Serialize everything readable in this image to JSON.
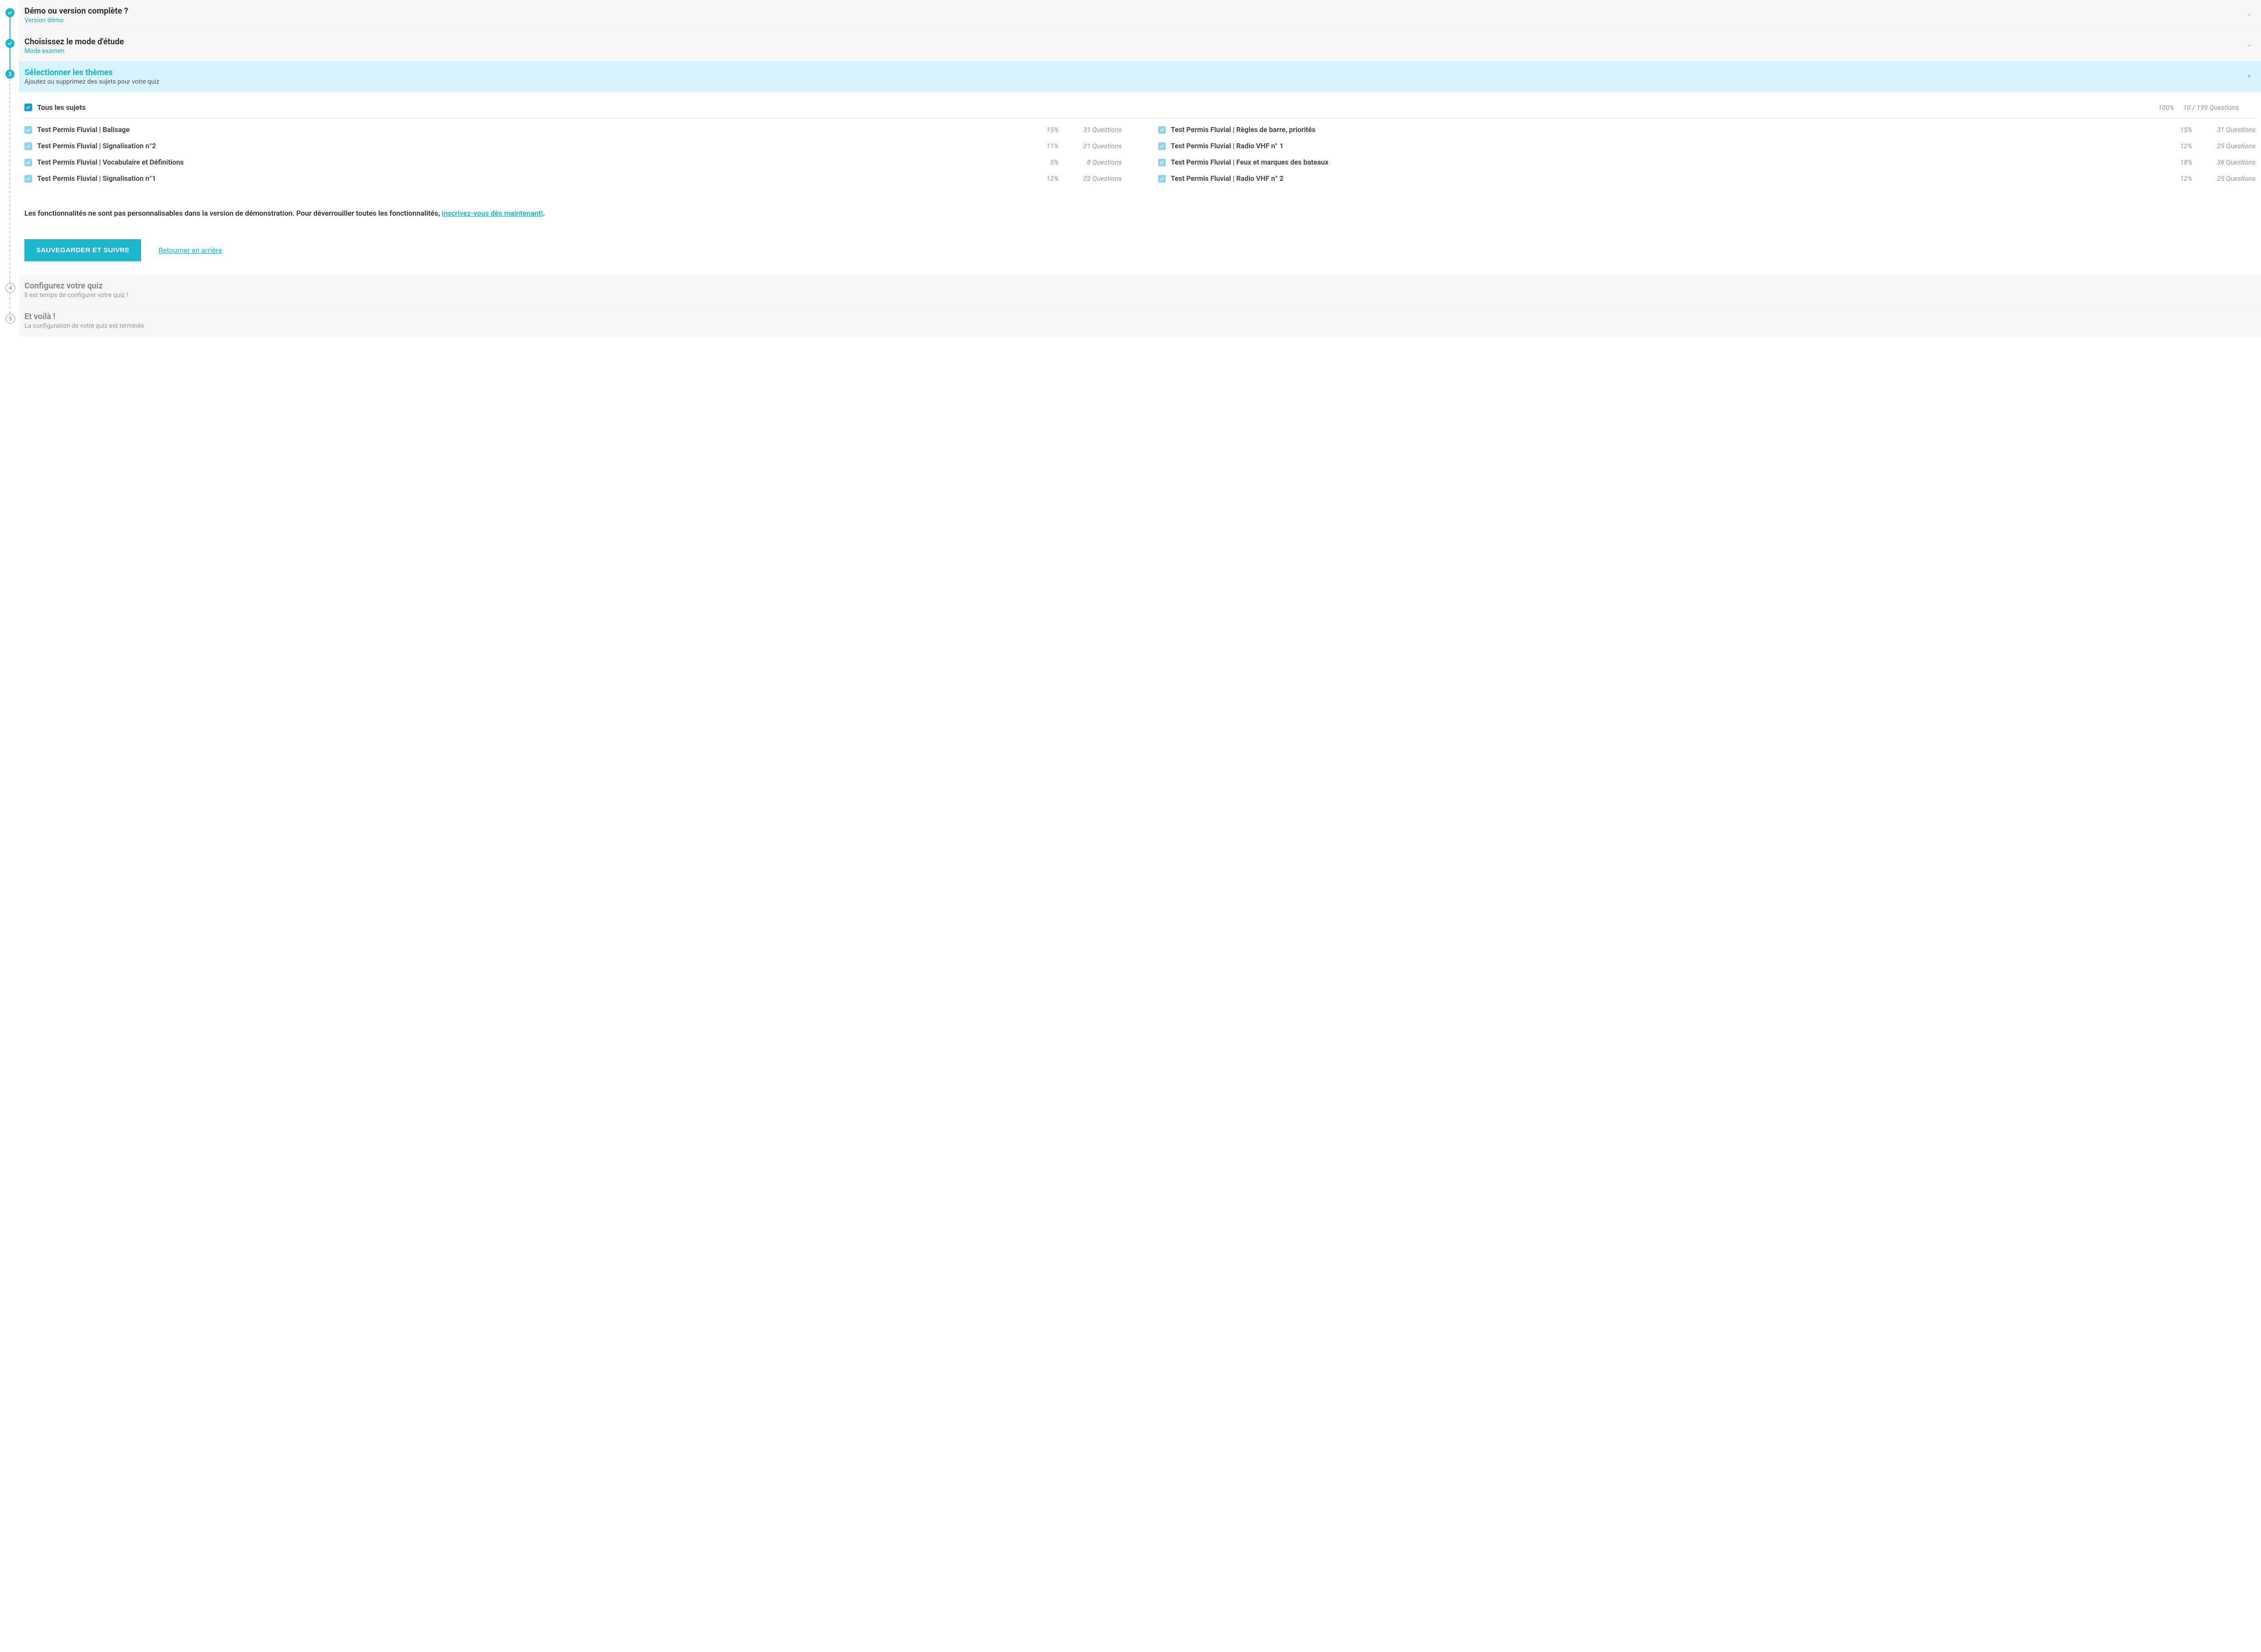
{
  "colors": {
    "accent": "#1cb6cf",
    "checkbox_primary": "#149ad1",
    "checkbox_light": "#8ad7ec",
    "muted_text": "#9a9a9a",
    "bg_collapsed": "#f7f7f7",
    "bg_active": "#d7f3fb",
    "border": "#efefef"
  },
  "steps": {
    "s1": {
      "title": "Démo ou version complète ?",
      "subtitle": "Version démo",
      "status": "done"
    },
    "s2": {
      "title": "Choisissez le mode d'étude",
      "subtitle": "Mode examen",
      "status": "done"
    },
    "s3": {
      "number": "3",
      "title": "Sélectionner les thèmes",
      "subtitle": "Ajoutez ou supprimez des sujets pour votre quiz",
      "status": "active"
    },
    "s4": {
      "number": "4",
      "title": "Configurez votre quiz",
      "subtitle": "Il est temps de configurer votre quiz !",
      "status": "pending"
    },
    "s5": {
      "number": "5",
      "title": "Et voilà !",
      "subtitle": "La configuration de votre quiz est terminée",
      "status": "pending"
    }
  },
  "all_subjects": {
    "label": "Tous les sujets",
    "pct": "100%",
    "count": "10 / 199 Questions"
  },
  "subjects_left": [
    {
      "label": "Test Permis Fluvial | Balisage",
      "pct": "15%",
      "count": "31 Questions"
    },
    {
      "label": "Test Permis Fluvial | Signalisation n°2",
      "pct": "11%",
      "count": "21 Questions"
    },
    {
      "label": "Test Permis Fluvial | Vocabulaire et Définitions",
      "pct": "5%",
      "count": "8 Questions"
    },
    {
      "label": "Test Permis Fluvial | Signalisation n°1",
      "pct": "12%",
      "count": "22 Questions"
    }
  ],
  "subjects_right": [
    {
      "label": "Test Permis Fluvial | Règles de barre, priorités",
      "pct": "15%",
      "count": "31 Questions"
    },
    {
      "label": "Test Permis Fluvial | Radio VHF n° 1",
      "pct": "12%",
      "count": "25 Questions"
    },
    {
      "label": "Test Permis Fluvial | Feux et marques des bateaux",
      "pct": "18%",
      "count": "36 Questions"
    },
    {
      "label": "Test Permis Fluvial | Radio VHF n° 2",
      "pct": "12%",
      "count": "25 Questions"
    }
  ],
  "notice": {
    "prefix": "Les fonctionnalités ne sont pas personnalisables dans la version de démonstration. Pour déverrouiller toutes les fonctionnalités, ",
    "link": "inscrivez-vous dès maintenant!",
    "suffix": "."
  },
  "actions": {
    "save": "SAUVEGARDER ET SUIVRE",
    "back": "Retourner en arrière"
  }
}
